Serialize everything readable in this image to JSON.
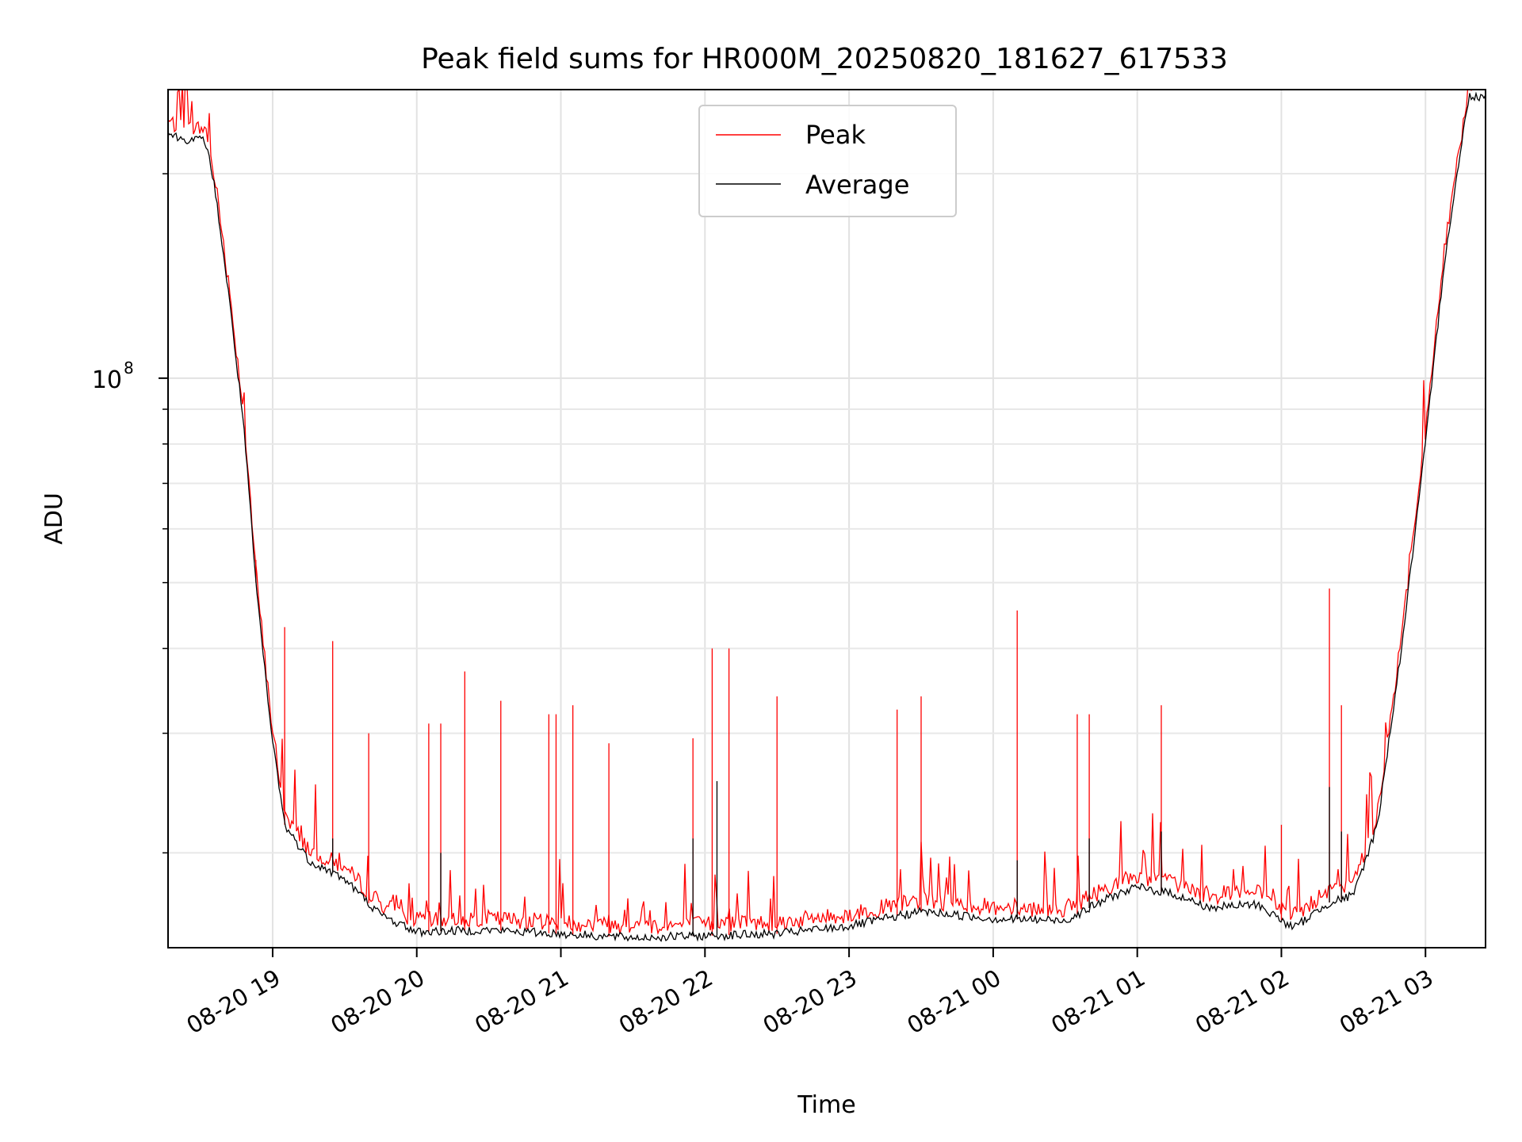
{
  "chart_data": {
    "type": "line",
    "title": "Peak field sums for HR000M_20250820_181627_617533",
    "xlabel": "Time",
    "ylabel": "ADU",
    "yscale": "log",
    "xlim": [
      "2025-08-20 18:16:27",
      "2025-08-21 03:25:00"
    ],
    "ylim": [
      14500000,
      266000000
    ],
    "grid": true,
    "legend": {
      "position": "top-center",
      "entries": [
        {
          "name": "Peak",
          "color": "#ff0000"
        },
        {
          "name": "Average",
          "color": "#000000"
        }
      ]
    },
    "x_ticks": [
      {
        "time": "2025-08-20 19:00",
        "label": "08-20 19"
      },
      {
        "time": "2025-08-20 20:00",
        "label": "08-20 20"
      },
      {
        "time": "2025-08-20 21:00",
        "label": "08-20 21"
      },
      {
        "time": "2025-08-20 22:00",
        "label": "08-20 22"
      },
      {
        "time": "2025-08-20 23:00",
        "label": "08-20 23"
      },
      {
        "time": "2025-08-21 00:00",
        "label": "08-21 00"
      },
      {
        "time": "2025-08-21 01:00",
        "label": "08-21 01"
      },
      {
        "time": "2025-08-21 02:00",
        "label": "08-21 02"
      },
      {
        "time": "2025-08-21 03:00",
        "label": "08-21 03"
      }
    ],
    "y_major_ticks": [
      {
        "value": 100000000,
        "base": "10",
        "exponent": "8"
      }
    ],
    "y_minor_ticks": [
      20000000,
      30000000,
      40000000,
      50000000,
      60000000,
      70000000,
      80000000,
      90000000,
      200000000
    ],
    "series": [
      {
        "name": "Average",
        "color": "#000000",
        "baseline": [
          [
            "2025-08-20 18:16",
            230000000
          ],
          [
            "2025-08-20 18:22",
            225000000
          ],
          [
            "2025-08-20 18:32",
            224000000
          ],
          [
            "2025-08-20 18:36",
            190000000
          ],
          [
            "2025-08-20 18:42",
            130000000
          ],
          [
            "2025-08-20 18:48",
            85000000
          ],
          [
            "2025-08-20 18:53",
            50000000
          ],
          [
            "2025-08-20 18:59",
            31000000
          ],
          [
            "2025-08-20 19:05",
            22000000
          ],
          [
            "2025-08-20 19:15",
            19500000
          ],
          [
            "2025-08-20 19:30",
            18300000
          ],
          [
            "2025-08-20 19:45",
            16200000
          ],
          [
            "2025-08-20 20:00",
            15300000
          ],
          [
            "2025-08-20 20:30",
            15400000
          ],
          [
            "2025-08-20 21:00",
            15200000
          ],
          [
            "2025-08-20 21:30",
            15000000
          ],
          [
            "2025-08-20 22:00",
            15100000
          ],
          [
            "2025-08-20 22:30",
            15200000
          ],
          [
            "2025-08-20 23:00",
            15600000
          ],
          [
            "2025-08-20 23:30",
            16400000
          ],
          [
            "2025-08-21 00:00",
            16000000
          ],
          [
            "2025-08-21 00:30",
            15900000
          ],
          [
            "2025-08-21 00:50",
            17300000
          ],
          [
            "2025-08-21 01:00",
            17800000
          ],
          [
            "2025-08-21 01:15",
            17400000
          ],
          [
            "2025-08-21 01:30",
            16600000
          ],
          [
            "2025-08-21 01:50",
            16800000
          ],
          [
            "2025-08-21 02:05",
            15500000
          ],
          [
            "2025-08-21 02:20",
            16900000
          ],
          [
            "2025-08-21 02:30",
            17300000
          ],
          [
            "2025-08-21 02:40",
            22000000
          ],
          [
            "2025-08-21 02:50",
            40000000
          ],
          [
            "2025-08-21 03:00",
            80000000
          ],
          [
            "2025-08-21 03:08",
            150000000
          ],
          [
            "2025-08-21 03:18",
            260000000
          ]
        ],
        "notable_spikes": [
          [
            "2025-08-20 19:25",
            21000000
          ],
          [
            "2025-08-20 20:10",
            20000000
          ],
          [
            "2025-08-20 21:55",
            21000000
          ],
          [
            "2025-08-20 22:05",
            25500000
          ],
          [
            "2025-08-21 00:10",
            19500000
          ],
          [
            "2025-08-21 00:40",
            21000000
          ],
          [
            "2025-08-21 01:10",
            21500000
          ],
          [
            "2025-08-21 02:20",
            25000000
          ],
          [
            "2025-08-21 02:25",
            21500000
          ]
        ]
      },
      {
        "name": "Peak",
        "color": "#ff0000",
        "notable_spikes": [
          [
            "2025-08-20 18:53",
            54000000
          ],
          [
            "2025-08-20 19:05",
            43000000
          ],
          [
            "2025-08-20 19:25",
            41000000
          ],
          [
            "2025-08-20 19:40",
            30000000
          ],
          [
            "2025-08-20 20:05",
            31000000
          ],
          [
            "2025-08-20 20:10",
            31000000
          ],
          [
            "2025-08-20 20:20",
            37000000
          ],
          [
            "2025-08-20 20:35",
            33500000
          ],
          [
            "2025-08-20 20:55",
            32000000
          ],
          [
            "2025-08-20 20:58",
            32000000
          ],
          [
            "2025-08-20 21:05",
            33000000
          ],
          [
            "2025-08-20 21:20",
            29000000
          ],
          [
            "2025-08-20 21:55",
            29500000
          ],
          [
            "2025-08-20 22:03",
            40000000
          ],
          [
            "2025-08-20 22:10",
            40000000
          ],
          [
            "2025-08-20 22:30",
            34000000
          ],
          [
            "2025-08-20 23:20",
            32500000
          ],
          [
            "2025-08-20 23:30",
            34000000
          ],
          [
            "2025-08-21 00:10",
            45500000
          ],
          [
            "2025-08-21 00:35",
            32000000
          ],
          [
            "2025-08-21 00:40",
            32000000
          ],
          [
            "2025-08-21 01:10",
            33000000
          ],
          [
            "2025-08-21 02:00",
            22000000
          ],
          [
            "2025-08-21 02:20",
            49000000
          ],
          [
            "2025-08-21 02:25",
            33000000
          ]
        ]
      }
    ]
  }
}
